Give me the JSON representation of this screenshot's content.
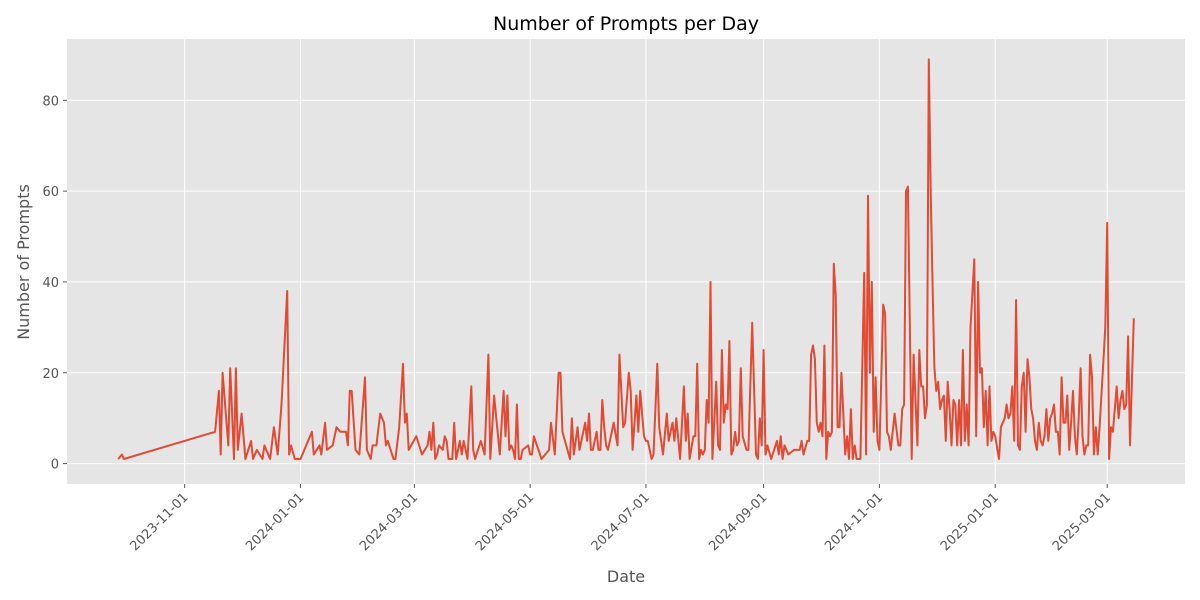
{
  "chart_data": {
    "type": "line",
    "title": "Number of Prompts per Day",
    "xlabel": "Date",
    "ylabel": "Number of Prompts",
    "xlim": [
      "2023-08-31",
      "2025-04-11"
    ],
    "ylim": [
      -4.5,
      93.5
    ],
    "grid": true,
    "style": "ggplot",
    "colors": {
      "line": "#E24A33",
      "background": "#E5E5E5",
      "grid": "#FFFFFF"
    },
    "x_ticks": [
      "2023-11-01",
      "2024-01-01",
      "2024-03-01",
      "2024-05-01",
      "2024-07-01",
      "2024-09-01",
      "2024-11-01",
      "2025-01-01",
      "2025-03-01"
    ],
    "y_ticks": [
      0,
      20,
      40,
      60,
      80
    ],
    "points": [
      [
        "2023-09-27",
        1
      ],
      [
        "2023-09-29",
        2
      ],
      [
        "2023-09-30",
        1
      ],
      [
        "2023-11-17",
        7
      ],
      [
        "2023-11-19",
        16
      ],
      [
        "2023-11-20",
        2
      ],
      [
        "2023-11-21",
        20
      ],
      [
        "2023-11-24",
        4
      ],
      [
        "2023-11-25",
        21
      ],
      [
        "2023-11-27",
        1
      ],
      [
        "2023-11-28",
        21
      ],
      [
        "2023-11-29",
        3
      ],
      [
        "2023-12-01",
        11
      ],
      [
        "2023-12-03",
        1
      ],
      [
        "2023-12-06",
        5
      ],
      [
        "2023-12-07",
        1
      ],
      [
        "2023-12-09",
        3
      ],
      [
        "2023-12-12",
        1
      ],
      [
        "2023-12-13",
        4
      ],
      [
        "2023-12-16",
        1
      ],
      [
        "2023-12-18",
        8
      ],
      [
        "2023-12-20",
        2
      ],
      [
        "2023-12-22",
        13
      ],
      [
        "2023-12-25",
        38
      ],
      [
        "2023-12-26",
        2
      ],
      [
        "2023-12-27",
        4
      ],
      [
        "2023-12-29",
        1
      ],
      [
        "2024-01-01",
        1
      ],
      [
        "2024-01-07",
        7
      ],
      [
        "2024-01-08",
        2
      ],
      [
        "2024-01-11",
        4
      ],
      [
        "2024-01-12",
        2
      ],
      [
        "2024-01-14",
        9
      ],
      [
        "2024-01-15",
        3
      ],
      [
        "2024-01-18",
        4
      ],
      [
        "2024-01-20",
        8
      ],
      [
        "2024-01-22",
        7
      ],
      [
        "2024-01-25",
        7
      ],
      [
        "2024-01-26",
        4
      ],
      [
        "2024-01-27",
        16
      ],
      [
        "2024-01-28",
        16
      ],
      [
        "2024-01-30",
        3
      ],
      [
        "2024-02-01",
        2
      ],
      [
        "2024-02-04",
        19
      ],
      [
        "2024-02-05",
        3
      ],
      [
        "2024-02-07",
        1
      ],
      [
        "2024-02-08",
        4
      ],
      [
        "2024-02-10",
        4
      ],
      [
        "2024-02-12",
        11
      ],
      [
        "2024-02-14",
        9
      ],
      [
        "2024-02-15",
        4
      ],
      [
        "2024-02-16",
        5
      ],
      [
        "2024-02-19",
        1
      ],
      [
        "2024-02-20",
        1
      ],
      [
        "2024-02-22",
        8
      ],
      [
        "2024-02-24",
        22
      ],
      [
        "2024-02-25",
        9
      ],
      [
        "2024-02-26",
        11
      ],
      [
        "2024-02-27",
        3
      ],
      [
        "2024-03-02",
        6
      ],
      [
        "2024-03-05",
        2
      ],
      [
        "2024-03-08",
        4
      ],
      [
        "2024-03-09",
        7
      ],
      [
        "2024-03-10",
        3
      ],
      [
        "2024-03-11",
        9
      ],
      [
        "2024-03-12",
        1
      ],
      [
        "2024-03-13",
        2
      ],
      [
        "2024-03-14",
        4
      ],
      [
        "2024-03-16",
        3
      ],
      [
        "2024-03-17",
        6
      ],
      [
        "2024-03-18",
        5
      ],
      [
        "2024-03-19",
        1
      ],
      [
        "2024-03-21",
        1
      ],
      [
        "2024-03-22",
        9
      ],
      [
        "2024-03-23",
        1
      ],
      [
        "2024-03-25",
        5
      ],
      [
        "2024-03-26",
        2
      ],
      [
        "2024-03-27",
        5
      ],
      [
        "2024-03-29",
        1
      ],
      [
        "2024-03-31",
        17
      ],
      [
        "2024-04-01",
        3
      ],
      [
        "2024-04-02",
        1
      ],
      [
        "2024-04-05",
        5
      ],
      [
        "2024-04-07",
        2
      ],
      [
        "2024-04-09",
        24
      ],
      [
        "2024-04-10",
        1
      ],
      [
        "2024-04-12",
        15
      ],
      [
        "2024-04-15",
        2
      ],
      [
        "2024-04-17",
        16
      ],
      [
        "2024-04-18",
        6
      ],
      [
        "2024-04-19",
        15
      ],
      [
        "2024-04-20",
        3
      ],
      [
        "2024-04-21",
        4
      ],
      [
        "2024-04-22",
        3
      ],
      [
        "2024-04-23",
        1
      ],
      [
        "2024-04-24",
        13
      ],
      [
        "2024-04-25",
        1
      ],
      [
        "2024-04-26",
        1
      ],
      [
        "2024-04-27",
        3
      ],
      [
        "2024-04-30",
        4
      ],
      [
        "2024-05-01",
        2
      ],
      [
        "2024-05-02",
        2
      ],
      [
        "2024-05-03",
        6
      ],
      [
        "2024-05-07",
        1
      ],
      [
        "2024-05-11",
        3
      ],
      [
        "2024-05-12",
        9
      ],
      [
        "2024-05-14",
        2
      ],
      [
        "2024-05-16",
        20
      ],
      [
        "2024-05-17",
        20
      ],
      [
        "2024-05-18",
        7
      ],
      [
        "2024-05-22",
        1
      ],
      [
        "2024-05-23",
        10
      ],
      [
        "2024-05-24",
        2
      ],
      [
        "2024-05-26",
        8
      ],
      [
        "2024-05-27",
        3
      ],
      [
        "2024-05-30",
        9
      ],
      [
        "2024-05-31",
        5
      ],
      [
        "2024-06-01",
        11
      ],
      [
        "2024-06-02",
        3
      ],
      [
        "2024-06-03",
        3
      ],
      [
        "2024-06-05",
        7
      ],
      [
        "2024-06-06",
        3
      ],
      [
        "2024-06-07",
        3
      ],
      [
        "2024-06-08",
        14
      ],
      [
        "2024-06-09",
        8
      ],
      [
        "2024-06-10",
        4
      ],
      [
        "2024-06-11",
        3
      ],
      [
        "2024-06-14",
        9
      ],
      [
        "2024-06-16",
        4
      ],
      [
        "2024-06-17",
        24
      ],
      [
        "2024-06-19",
        8
      ],
      [
        "2024-06-20",
        9
      ],
      [
        "2024-06-22",
        20
      ],
      [
        "2024-06-23",
        16
      ],
      [
        "2024-06-24",
        3
      ],
      [
        "2024-06-26",
        15
      ],
      [
        "2024-06-27",
        7
      ],
      [
        "2024-06-28",
        16
      ],
      [
        "2024-06-30",
        6
      ],
      [
        "2024-07-01",
        5
      ],
      [
        "2024-07-02",
        5
      ],
      [
        "2024-07-04",
        1
      ],
      [
        "2024-07-05",
        2
      ],
      [
        "2024-07-07",
        22
      ],
      [
        "2024-07-08",
        8
      ],
      [
        "2024-07-10",
        2
      ],
      [
        "2024-07-12",
        11
      ],
      [
        "2024-07-13",
        5
      ],
      [
        "2024-07-15",
        9
      ],
      [
        "2024-07-16",
        5
      ],
      [
        "2024-07-17",
        10
      ],
      [
        "2024-07-19",
        1
      ],
      [
        "2024-07-21",
        17
      ],
      [
        "2024-07-22",
        5
      ],
      [
        "2024-07-23",
        11
      ],
      [
        "2024-07-24",
        1
      ],
      [
        "2024-07-26",
        6
      ],
      [
        "2024-07-27",
        6
      ],
      [
        "2024-07-28",
        22
      ],
      [
        "2024-07-29",
        1
      ],
      [
        "2024-07-30",
        3
      ],
      [
        "2024-07-31",
        2
      ],
      [
        "2024-08-01",
        3
      ],
      [
        "2024-08-02",
        14
      ],
      [
        "2024-08-03",
        9
      ],
      [
        "2024-08-04",
        40
      ],
      [
        "2024-08-05",
        1
      ],
      [
        "2024-08-07",
        18
      ],
      [
        "2024-08-08",
        4
      ],
      [
        "2024-08-09",
        3
      ],
      [
        "2024-08-10",
        25
      ],
      [
        "2024-08-11",
        9
      ],
      [
        "2024-08-12",
        13
      ],
      [
        "2024-08-13",
        12
      ],
      [
        "2024-08-14",
        27
      ],
      [
        "2024-08-15",
        2
      ],
      [
        "2024-08-16",
        3
      ],
      [
        "2024-08-17",
        7
      ],
      [
        "2024-08-18",
        4
      ],
      [
        "2024-08-19",
        5
      ],
      [
        "2024-08-20",
        21
      ],
      [
        "2024-08-21",
        6
      ],
      [
        "2024-08-23",
        3
      ],
      [
        "2024-08-24",
        3
      ],
      [
        "2024-08-26",
        31
      ],
      [
        "2024-08-28",
        2
      ],
      [
        "2024-08-29",
        1
      ],
      [
        "2024-08-30",
        10
      ],
      [
        "2024-08-31",
        4
      ],
      [
        "2024-09-01",
        25
      ],
      [
        "2024-09-02",
        2
      ],
      [
        "2024-09-03",
        4
      ],
      [
        "2024-09-05",
        1
      ],
      [
        "2024-09-08",
        5
      ],
      [
        "2024-09-09",
        2
      ],
      [
        "2024-09-10",
        6
      ],
      [
        "2024-09-11",
        1
      ],
      [
        "2024-09-12",
        4
      ],
      [
        "2024-09-14",
        2
      ],
      [
        "2024-09-17",
        3
      ],
      [
        "2024-09-20",
        3
      ],
      [
        "2024-09-21",
        5
      ],
      [
        "2024-09-22",
        2
      ],
      [
        "2024-09-24",
        5
      ],
      [
        "2024-09-25",
        5
      ],
      [
        "2024-09-26",
        24
      ],
      [
        "2024-09-27",
        26
      ],
      [
        "2024-09-28",
        23
      ],
      [
        "2024-09-29",
        9
      ],
      [
        "2024-09-30",
        7
      ],
      [
        "2024-10-01",
        9
      ],
      [
        "2024-10-02",
        6
      ],
      [
        "2024-10-03",
        26
      ],
      [
        "2024-10-04",
        1
      ],
      [
        "2024-10-05",
        7
      ],
      [
        "2024-10-06",
        6
      ],
      [
        "2024-10-07",
        7
      ],
      [
        "2024-10-08",
        44
      ],
      [
        "2024-10-09",
        37
      ],
      [
        "2024-10-10",
        8
      ],
      [
        "2024-10-11",
        8
      ],
      [
        "2024-10-12",
        20
      ],
      [
        "2024-10-14",
        2
      ],
      [
        "2024-10-15",
        6
      ],
      [
        "2024-10-16",
        1
      ],
      [
        "2024-10-17",
        12
      ],
      [
        "2024-10-18",
        1
      ],
      [
        "2024-10-19",
        4
      ],
      [
        "2024-10-20",
        1
      ],
      [
        "2024-10-22",
        1
      ],
      [
        "2024-10-24",
        42
      ],
      [
        "2024-10-25",
        2
      ],
      [
        "2024-10-26",
        59
      ],
      [
        "2024-10-27",
        20
      ],
      [
        "2024-10-28",
        40
      ],
      [
        "2024-10-29",
        7
      ],
      [
        "2024-10-30",
        19
      ],
      [
        "2024-10-31",
        5
      ],
      [
        "2024-11-01",
        3
      ],
      [
        "2024-11-03",
        35
      ],
      [
        "2024-11-04",
        33
      ],
      [
        "2024-11-05",
        7
      ],
      [
        "2024-11-06",
        6
      ],
      [
        "2024-11-07",
        3
      ],
      [
        "2024-11-09",
        11
      ],
      [
        "2024-11-11",
        4
      ],
      [
        "2024-11-12",
        4
      ],
      [
        "2024-11-13",
        12
      ],
      [
        "2024-11-14",
        13
      ],
      [
        "2024-11-15",
        60
      ],
      [
        "2024-11-16",
        61
      ],
      [
        "2024-11-18",
        1
      ],
      [
        "2024-11-19",
        24
      ],
      [
        "2024-11-21",
        4
      ],
      [
        "2024-11-22",
        25
      ],
      [
        "2024-11-23",
        17
      ],
      [
        "2024-11-24",
        17
      ],
      [
        "2024-11-25",
        10
      ],
      [
        "2024-11-26",
        13
      ],
      [
        "2024-11-27",
        89
      ],
      [
        "2024-11-28",
        60
      ],
      [
        "2024-11-29",
        40
      ],
      [
        "2024-11-30",
        21
      ],
      [
        "2024-12-01",
        16
      ],
      [
        "2024-12-02",
        18
      ],
      [
        "2024-12-03",
        12
      ],
      [
        "2024-12-04",
        14
      ],
      [
        "2024-12-05",
        15
      ],
      [
        "2024-12-06",
        5
      ],
      [
        "2024-12-07",
        18
      ],
      [
        "2024-12-08",
        12
      ],
      [
        "2024-12-09",
        4
      ],
      [
        "2024-12-10",
        14
      ],
      [
        "2024-12-11",
        13
      ],
      [
        "2024-12-12",
        4
      ],
      [
        "2024-12-13",
        14
      ],
      [
        "2024-12-14",
        4
      ],
      [
        "2024-12-15",
        25
      ],
      [
        "2024-12-16",
        5
      ],
      [
        "2024-12-17",
        13
      ],
      [
        "2024-12-18",
        4
      ],
      [
        "2024-12-19",
        30
      ],
      [
        "2024-12-21",
        45
      ],
      [
        "2024-12-22",
        6
      ],
      [
        "2024-12-23",
        40
      ],
      [
        "2024-12-24",
        20
      ],
      [
        "2024-12-25",
        21
      ],
      [
        "2024-12-26",
        8
      ],
      [
        "2024-12-27",
        16
      ],
      [
        "2024-12-28",
        4
      ],
      [
        "2024-12-29",
        17
      ],
      [
        "2024-12-30",
        5
      ],
      [
        "2024-12-31",
        7
      ],
      [
        "2025-01-01",
        6
      ],
      [
        "2025-01-03",
        1
      ],
      [
        "2025-01-04",
        8
      ],
      [
        "2025-01-06",
        10
      ],
      [
        "2025-01-07",
        13
      ],
      [
        "2025-01-08",
        10
      ],
      [
        "2025-01-09",
        11
      ],
      [
        "2025-01-10",
        17
      ],
      [
        "2025-01-11",
        5
      ],
      [
        "2025-01-12",
        36
      ],
      [
        "2025-01-13",
        4
      ],
      [
        "2025-01-14",
        3
      ],
      [
        "2025-01-15",
        17
      ],
      [
        "2025-01-16",
        20
      ],
      [
        "2025-01-17",
        7
      ],
      [
        "2025-01-18",
        23
      ],
      [
        "2025-01-19",
        19
      ],
      [
        "2025-01-20",
        12
      ],
      [
        "2025-01-21",
        10
      ],
      [
        "2025-01-22",
        5
      ],
      [
        "2025-01-23",
        3
      ],
      [
        "2025-01-24",
        9
      ],
      [
        "2025-01-25",
        5
      ],
      [
        "2025-01-26",
        4
      ],
      [
        "2025-01-27",
        6
      ],
      [
        "2025-01-28",
        12
      ],
      [
        "2025-01-29",
        5
      ],
      [
        "2025-01-30",
        10
      ],
      [
        "2025-01-31",
        11
      ],
      [
        "2025-02-01",
        13
      ],
      [
        "2025-02-02",
        7
      ],
      [
        "2025-02-03",
        7
      ],
      [
        "2025-02-04",
        2
      ],
      [
        "2025-02-05",
        19
      ],
      [
        "2025-02-06",
        9
      ],
      [
        "2025-02-07",
        9
      ],
      [
        "2025-02-08",
        15
      ],
      [
        "2025-02-09",
        3
      ],
      [
        "2025-02-10",
        9
      ],
      [
        "2025-02-11",
        16
      ],
      [
        "2025-02-12",
        6
      ],
      [
        "2025-02-13",
        2
      ],
      [
        "2025-02-14",
        10
      ],
      [
        "2025-02-15",
        21
      ],
      [
        "2025-02-16",
        6
      ],
      [
        "2025-02-17",
        2
      ],
      [
        "2025-02-18",
        4
      ],
      [
        "2025-02-19",
        4
      ],
      [
        "2025-02-20",
        24
      ],
      [
        "2025-02-21",
        19
      ],
      [
        "2025-02-22",
        2
      ],
      [
        "2025-02-23",
        8
      ],
      [
        "2025-02-24",
        2
      ],
      [
        "2025-02-25",
        8
      ],
      [
        "2025-02-28",
        30
      ],
      [
        "2025-03-01",
        53
      ],
      [
        "2025-03-02",
        1
      ],
      [
        "2025-03-03",
        8
      ],
      [
        "2025-03-04",
        7
      ],
      [
        "2025-03-05",
        12
      ],
      [
        "2025-03-06",
        17
      ],
      [
        "2025-03-07",
        10
      ],
      [
        "2025-03-08",
        14
      ],
      [
        "2025-03-09",
        16
      ],
      [
        "2025-03-10",
        12
      ],
      [
        "2025-03-11",
        13
      ],
      [
        "2025-03-12",
        28
      ],
      [
        "2025-03-13",
        4
      ],
      [
        "2025-03-15",
        32
      ]
    ]
  }
}
